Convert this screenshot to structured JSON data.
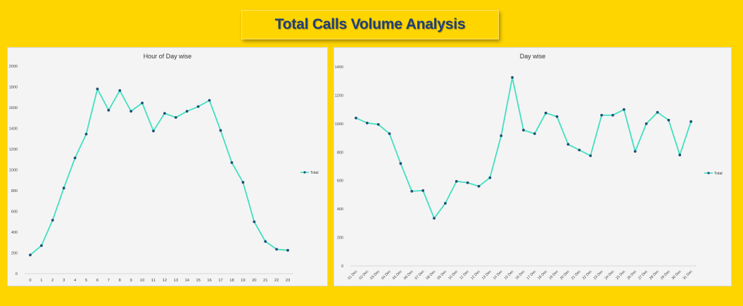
{
  "header": {
    "title": "Total Calls Volume Analysis"
  },
  "colors": {
    "background": "#FFD500",
    "line": "#40E0C0",
    "marker": "#1F4E79",
    "title": "#1F3F7A"
  },
  "chart_data": [
    {
      "type": "line",
      "title": "Hour of Day wise",
      "categories": [
        "0",
        "1",
        "2",
        "3",
        "4",
        "5",
        "6",
        "7",
        "8",
        "9",
        "10",
        "11",
        "12",
        "13",
        "14",
        "15",
        "16",
        "17",
        "18",
        "19",
        "20",
        "21",
        "22",
        "23"
      ],
      "series": [
        {
          "name": "Total",
          "values": [
            180,
            270,
            515,
            825,
            1115,
            1345,
            1780,
            1575,
            1765,
            1565,
            1645,
            1375,
            1545,
            1505,
            1565,
            1610,
            1670,
            1380,
            1070,
            880,
            500,
            310,
            235,
            225
          ]
        }
      ],
      "yticks": [
        "0",
        "200",
        "400",
        "600",
        "800",
        "1000",
        "1200",
        "1400",
        "1600",
        "1800",
        "2000"
      ],
      "ylim": [
        0,
        2000
      ],
      "legend": "right",
      "grid": false
    },
    {
      "type": "line",
      "title": "Day wise",
      "categories": [
        "01 Dec",
        "02 Dec",
        "03 Dec",
        "04 Dec",
        "05 Dec",
        "06 Dec",
        "07 Dec",
        "08 Dec",
        "09 Dec",
        "10 Dec",
        "11 Dec",
        "12 Dec",
        "13 Dec",
        "14 Dec",
        "15 Dec",
        "16 Dec",
        "17 Dec",
        "18 Dec",
        "19 Dec",
        "20 Dec",
        "21 Dec",
        "22 Dec",
        "23 Dec",
        "24 Dec",
        "25 Dec",
        "26 Dec",
        "27 Dec",
        "28 Dec",
        "29 Dec",
        "30 Dec",
        "31 Dec"
      ],
      "series": [
        {
          "name": "Total",
          "values": [
            1040,
            1005,
            995,
            930,
            720,
            525,
            530,
            335,
            440,
            595,
            585,
            560,
            620,
            915,
            1325,
            955,
            930,
            1075,
            1050,
            855,
            815,
            775,
            1060,
            1060,
            1100,
            805,
            1000,
            1080,
            1025,
            780,
            1015
          ]
        }
      ],
      "yticks": [
        "0",
        "200",
        "400",
        "600",
        "800",
        "1000",
        "1200",
        "1400"
      ],
      "ylim": [
        0,
        1400
      ],
      "legend": "right",
      "grid": false
    }
  ]
}
